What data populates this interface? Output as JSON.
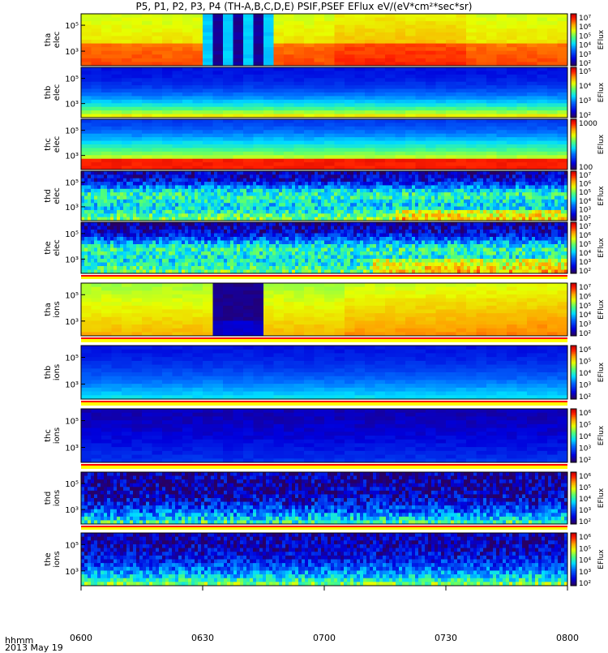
{
  "title": "P5, P1, P2, P3, P4 (TH-A,B,C,D,E) PSIF,PSEF EFlux eV/(eV*cm²*sec*sr)",
  "time_axis_label": "hhmm",
  "date_label": "2013 May 19",
  "chart_data": {
    "type": "heatmap",
    "x": {
      "range": [
        "0600",
        "0800"
      ],
      "tick_labels": [
        "0600",
        "0630",
        "0700",
        "0730",
        "0800"
      ]
    },
    "panels": [
      {
        "name_lines": [
          "tha",
          "elec"
        ],
        "ytick_labels": [
          "10⁵",
          "10³"
        ],
        "colorbar": {
          "ticks": [
            "10⁷",
            "10⁶",
            "10⁵",
            "10⁴",
            "10³",
            "10²"
          ],
          "label": "EFlux"
        }
      },
      {
        "name_lines": [
          "thb",
          "elec"
        ],
        "ytick_labels": [
          "10⁵",
          "10³"
        ],
        "colorbar": {
          "ticks": [
            "10⁵",
            "10⁴",
            "10³",
            "10²"
          ],
          "label": "EFlux"
        }
      },
      {
        "name_lines": [
          "thc",
          "elec"
        ],
        "ytick_labels": [
          "10⁵",
          "10³"
        ],
        "colorbar": {
          "ticks": [
            "1000",
            "100"
          ],
          "label": "EFlux"
        }
      },
      {
        "name_lines": [
          "thd",
          "elec"
        ],
        "ytick_labels": [
          "10⁵",
          "10³"
        ],
        "colorbar": {
          "ticks": [
            "10⁷",
            "10⁶",
            "10⁵",
            "10⁴",
            "10³",
            "10²"
          ],
          "label": "EFlux"
        }
      },
      {
        "name_lines": [
          "the",
          "elec"
        ],
        "ytick_labels": [
          "10⁵",
          "10³"
        ],
        "colorbar": {
          "ticks": [
            "10⁷",
            "10⁶",
            "10⁵",
            "10⁴",
            "10³",
            "10²"
          ],
          "label": "EFlux"
        }
      },
      {
        "name_lines": [
          "tha",
          "ions"
        ],
        "ytick_labels": [
          "10⁵",
          "10³"
        ],
        "colorbar": {
          "ticks": [
            "10⁷",
            "10⁶",
            "10⁵",
            "10⁴",
            "10³",
            "10²"
          ],
          "label": "EFlux"
        }
      },
      {
        "name_lines": [
          "thb",
          "ions"
        ],
        "ytick_labels": [
          "10⁵",
          "10³"
        ],
        "colorbar": {
          "ticks": [
            "10⁶",
            "10⁵",
            "10⁴",
            "10³",
            "10²"
          ],
          "label": "EFlux"
        }
      },
      {
        "name_lines": [
          "thc",
          "ions"
        ],
        "ytick_labels": [
          "10⁵",
          "10³"
        ],
        "colorbar": {
          "ticks": [
            "10⁶",
            "10⁵",
            "10⁴",
            "10³",
            "10²"
          ],
          "label": "EFlux"
        }
      },
      {
        "name_lines": [
          "thd",
          "ions"
        ],
        "ytick_labels": [
          "10⁵",
          "10³"
        ],
        "colorbar": {
          "ticks": [
            "10⁶",
            "10⁵",
            "10⁴",
            "10³",
            "10²"
          ],
          "label": "EFlux"
        }
      },
      {
        "name_lines": [
          "the",
          "ions"
        ],
        "ytick_labels": [
          "10⁵",
          "10³"
        ],
        "colorbar": {
          "ticks": [
            "10⁶",
            "10⁵",
            "10⁴",
            "10³",
            "10²"
          ],
          "label": "EFlux"
        }
      }
    ]
  }
}
